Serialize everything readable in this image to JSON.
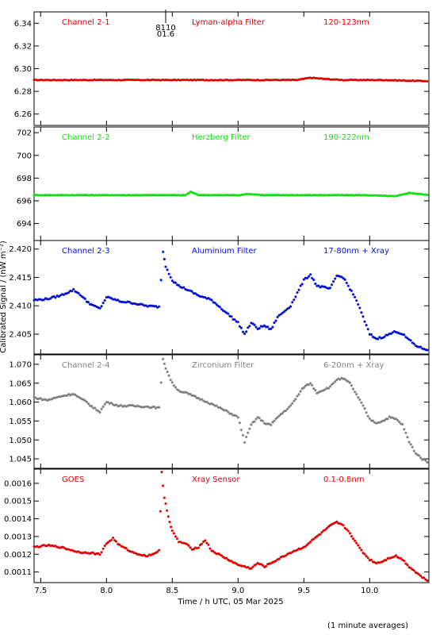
{
  "chart_data": [
    {
      "type": "scatter",
      "panel": "Channel 2-1",
      "labels": [
        "Channel 2-1",
        "Lyman-alpha Filter",
        "120-123nm"
      ],
      "color": "#e00000",
      "ylim": [
        6.25,
        6.35
      ],
      "yticks": [
        "6.26",
        "6.28",
        "6.30",
        "6.32",
        "6.34"
      ],
      "marker": {
        "x": 8.45,
        "text": [
          "8110",
          "01.6"
        ]
      },
      "series": [
        {
          "x": [
            7.45,
            7.8,
            8.2,
            8.6,
            9.0,
            9.35,
            9.45,
            9.55,
            9.65,
            9.8,
            10.1,
            10.45
          ],
          "values": [
            6.29,
            6.29,
            6.29,
            6.29,
            6.29,
            6.29,
            6.29,
            6.292,
            6.291,
            6.29,
            6.29,
            6.289
          ]
        }
      ]
    },
    {
      "type": "scatter",
      "panel": "Channel 2-2",
      "labels": [
        "Channel 2-2",
        "Herzberg Filter",
        "190-222nm"
      ],
      "color": "#10e010",
      "ylim": [
        692.5,
        702.5
      ],
      "yticks": [
        "694",
        "696",
        "698",
        "700",
        "702"
      ],
      "series": [
        {
          "x": [
            7.45,
            7.8,
            8.2,
            8.6,
            8.64,
            8.7,
            9.0,
            9.08,
            9.2,
            9.6,
            9.95,
            10.2,
            10.3,
            10.45
          ],
          "values": [
            696.5,
            696.5,
            696.5,
            696.5,
            696.8,
            696.5,
            696.5,
            696.6,
            696.5,
            696.5,
            696.5,
            696.4,
            696.7,
            696.5
          ]
        }
      ]
    },
    {
      "type": "scatter",
      "panel": "Channel 2-3",
      "labels": [
        "Channel 2-3",
        "Aluminium Filter",
        "17-80nm + Xray"
      ],
      "color": "#0010d0",
      "ylim": [
        2.4015,
        2.4215
      ],
      "yticks": [
        "2.405",
        "2.410",
        "2.415",
        "2.420"
      ],
      "series": [
        {
          "x": [
            7.45,
            7.55,
            7.65,
            7.75,
            7.8,
            7.85,
            7.9,
            7.95,
            8.0,
            8.05,
            8.1,
            8.2,
            8.3,
            8.4,
            8.43,
            8.45,
            8.5,
            8.55,
            8.6,
            8.7,
            8.8,
            8.9,
            9.0,
            9.05,
            9.1,
            9.15,
            9.2,
            9.25,
            9.3,
            9.4,
            9.5,
            9.55,
            9.6,
            9.7,
            9.75,
            9.8,
            9.85,
            9.9,
            9.95,
            10.0,
            10.05,
            10.1,
            10.15,
            10.2,
            10.25,
            10.3,
            10.35,
            10.4,
            10.45
          ],
          "values": [
            2.411,
            2.4112,
            2.4118,
            2.4128,
            2.412,
            2.4108,
            2.41,
            2.4095,
            2.4115,
            2.4112,
            2.4108,
            2.4105,
            2.41,
            2.4098,
            2.4195,
            2.417,
            2.4145,
            2.4135,
            2.413,
            2.4118,
            2.411,
            2.409,
            2.407,
            2.405,
            2.407,
            2.406,
            2.4065,
            2.4058,
            2.408,
            2.41,
            2.4145,
            2.4155,
            2.4135,
            2.413,
            2.4153,
            2.415,
            2.413,
            2.411,
            2.408,
            2.405,
            2.4042,
            2.4045,
            2.405,
            2.4055,
            2.405,
            2.404,
            2.403,
            2.4025,
            2.4022
          ]
        }
      ]
    },
    {
      "type": "scatter",
      "panel": "Channel 2-4",
      "labels": [
        "Channel 2-4",
        "Zirconium Filter",
        "6-20nm + Xray"
      ],
      "color": "#808080",
      "ylim": [
        1.0425,
        1.0725
      ],
      "yticks": [
        "1.045",
        "1.050",
        "1.055",
        "1.060",
        "1.065",
        "1.070"
      ],
      "series": [
        {
          "x": [
            7.45,
            7.55,
            7.65,
            7.75,
            7.8,
            7.85,
            7.9,
            7.95,
            8.0,
            8.05,
            8.1,
            8.2,
            8.3,
            8.4,
            8.43,
            8.45,
            8.5,
            8.55,
            8.6,
            8.7,
            8.8,
            8.9,
            9.0,
            9.05,
            9.1,
            9.15,
            9.2,
            9.25,
            9.3,
            9.4,
            9.5,
            9.55,
            9.6,
            9.7,
            9.75,
            9.8,
            9.85,
            9.9,
            9.95,
            10.0,
            10.05,
            10.1,
            10.15,
            10.2,
            10.25,
            10.3,
            10.35,
            10.4,
            10.45
          ],
          "values": [
            1.0612,
            1.0605,
            1.0615,
            1.0622,
            1.061,
            1.06,
            1.0585,
            1.0575,
            1.06,
            1.0595,
            1.059,
            1.059,
            1.0588,
            1.0585,
            1.0715,
            1.069,
            1.065,
            1.063,
            1.0625,
            1.061,
            1.0595,
            1.0578,
            1.056,
            1.0495,
            1.054,
            1.056,
            1.0545,
            1.054,
            1.056,
            1.059,
            1.064,
            1.065,
            1.0625,
            1.064,
            1.066,
            1.0662,
            1.065,
            1.062,
            1.059,
            1.0555,
            1.0545,
            1.055,
            1.056,
            1.0555,
            1.054,
            1.0495,
            1.0465,
            1.045,
            1.044
          ]
        }
      ]
    },
    {
      "type": "scatter",
      "panel": "GOES",
      "labels": [
        "GOES",
        "Xray Sensor",
        "0.1-0.8nm"
      ],
      "color": "#e00000",
      "ylim": [
        0.00104,
        0.00168
      ],
      "yticks": [
        "0.0011",
        "0.0012",
        "0.0013",
        "0.0014",
        "0.0015",
        "0.0016"
      ],
      "series": [
        {
          "x": [
            7.45,
            7.55,
            7.65,
            7.75,
            7.8,
            7.85,
            7.95,
            8.0,
            8.05,
            8.1,
            8.2,
            8.3,
            8.35,
            8.4,
            8.42,
            8.44,
            8.46,
            8.48,
            8.5,
            8.55,
            8.6,
            8.65,
            8.7,
            8.75,
            8.8,
            8.9,
            9.0,
            9.1,
            9.15,
            9.2,
            9.3,
            9.4,
            9.5,
            9.6,
            9.7,
            9.75,
            9.8,
            9.85,
            9.9,
            9.95,
            10.0,
            10.05,
            10.1,
            10.15,
            10.2,
            10.25,
            10.3,
            10.35,
            10.4,
            10.45
          ],
          "values": [
            0.00124,
            0.00125,
            0.00124,
            0.00122,
            0.00121,
            0.00121,
            0.0012,
            0.00126,
            0.00129,
            0.00125,
            0.00121,
            0.00119,
            0.0012,
            0.00122,
            0.00166,
            0.00152,
            0.00145,
            0.00138,
            0.00133,
            0.00127,
            0.00126,
            0.00123,
            0.00124,
            0.00128,
            0.00122,
            0.00118,
            0.00114,
            0.00112,
            0.00115,
            0.00113,
            0.00117,
            0.00121,
            0.00124,
            0.0013,
            0.00136,
            0.00138,
            0.00136,
            0.00132,
            0.00126,
            0.00121,
            0.00117,
            0.00115,
            0.00116,
            0.00118,
            0.00119,
            0.00117,
            0.00113,
            0.0011,
            0.00107,
            0.00105
          ]
        }
      ]
    }
  ],
  "axes": {
    "xlim": [
      7.45,
      10.45
    ],
    "xticks": [
      "7.5",
      "8.0",
      "8.5",
      "9.0",
      "9.5",
      "10.0"
    ],
    "xlabel": "Time / h UTC, 05 Mar 2025",
    "ylabel": "Calibrated Signal / (nW m⁻²)"
  },
  "footer": "(1 minute averages)"
}
